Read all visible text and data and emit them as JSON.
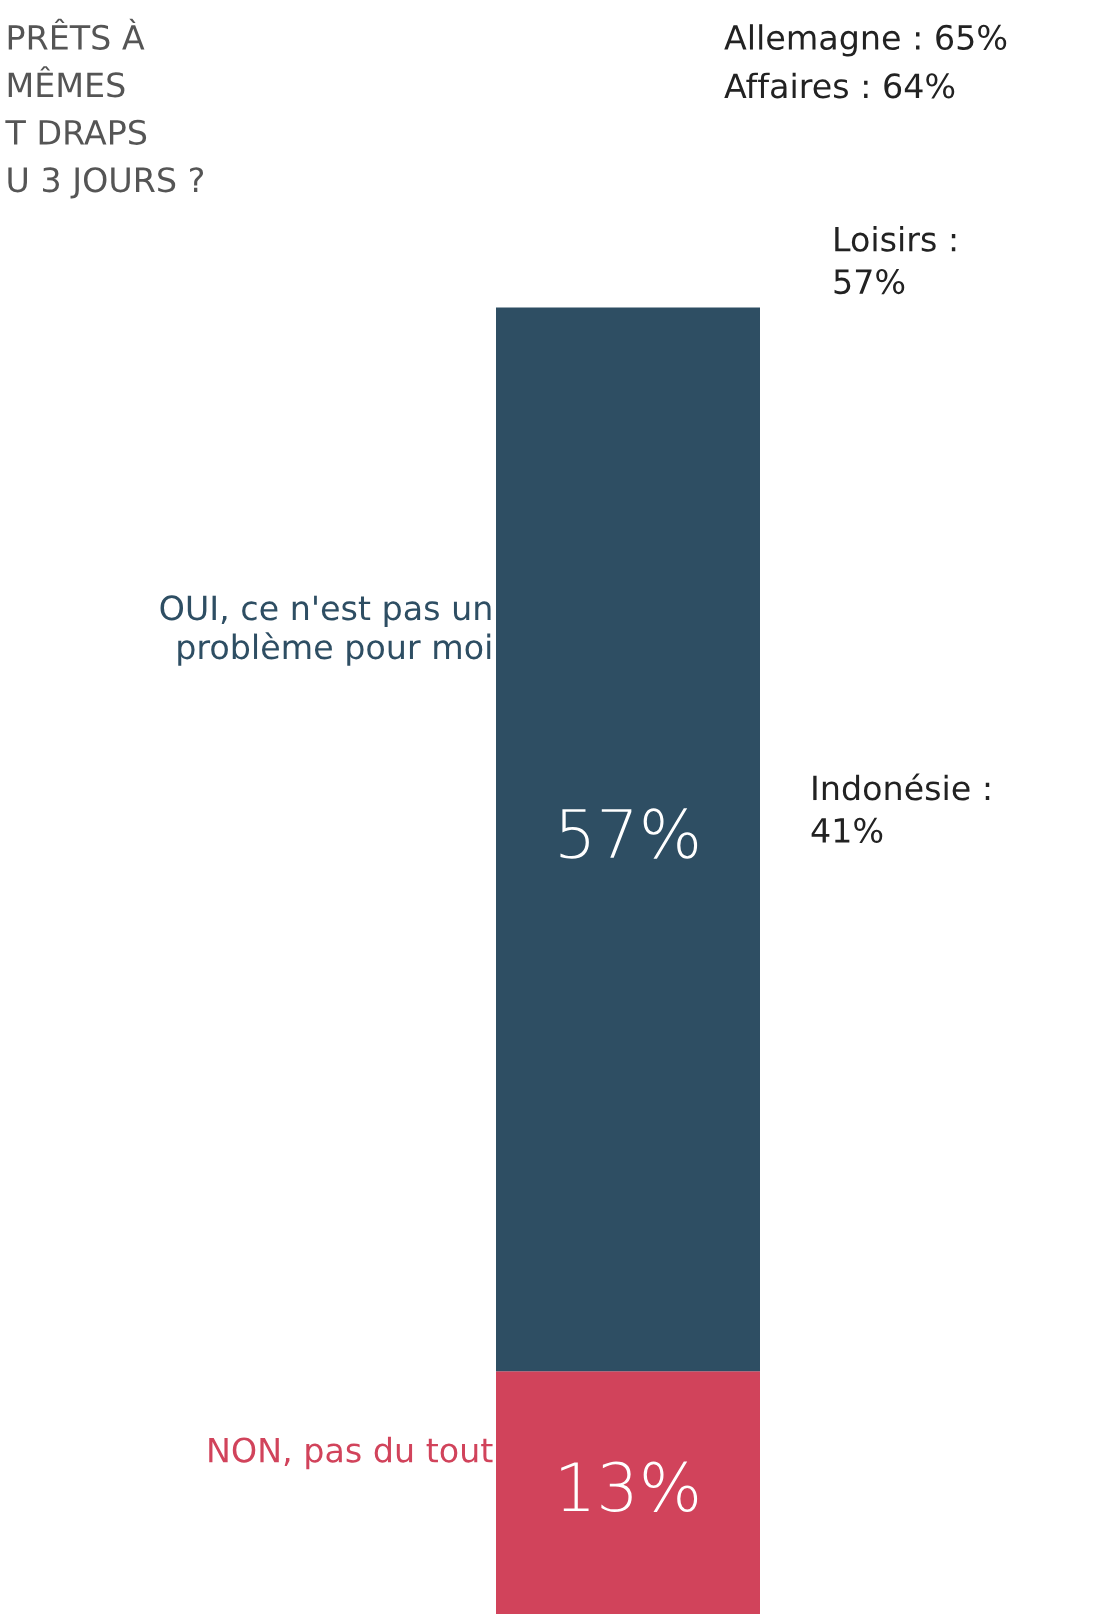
{
  "chart_data": {
    "type": "bar",
    "stacked": true,
    "title": "PRÊTS À\nMÊMES\nT DRAPS\nU 3 JOURS ?",
    "categories": [
      null
    ],
    "series": [
      {
        "name": "NON, pas du tout",
        "color": "#d1435b",
        "values": [
          13
        ],
        "value_labels": [
          "13%"
        ]
      },
      {
        "name": "OUI, ce n'est pas un\nproblème pour moi",
        "color": "#2e4e63",
        "values": [
          57
        ],
        "value_labels": [
          "57%"
        ]
      }
    ],
    "annotations": [
      "Allemagne : 65%",
      "Affaires : 64%",
      "Loisirs :\n57%",
      "Indonésie :\n41%"
    ],
    "legend": false
  }
}
